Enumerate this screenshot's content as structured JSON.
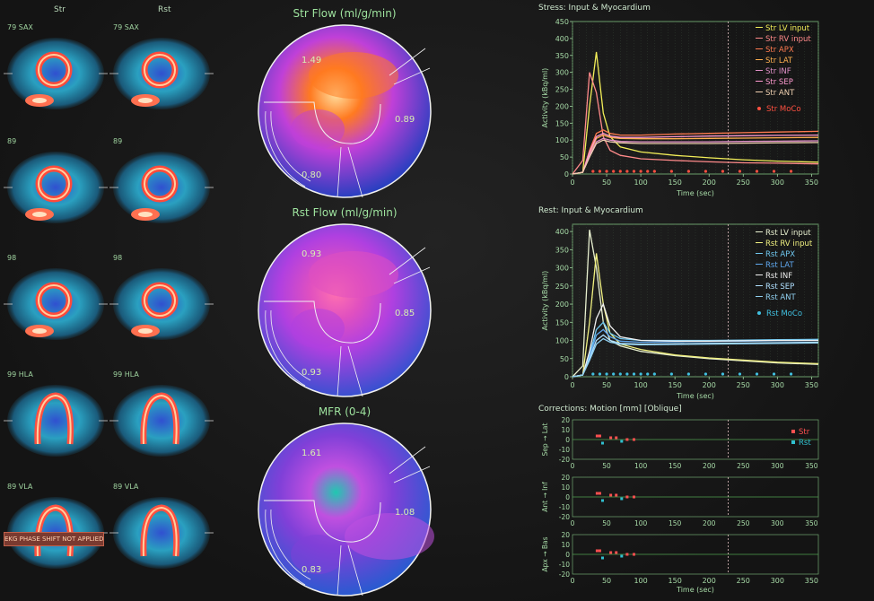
{
  "images": {
    "col_headers": [
      "Str",
      "Rst"
    ],
    "rows": [
      {
        "left": "79 SAX",
        "right": "79 SAX"
      },
      {
        "left": "89",
        "right": "89"
      },
      {
        "left": "98",
        "right": "98"
      },
      {
        "left": "99 HLA",
        "right": "99 HLA"
      },
      {
        "left": "89 VLA",
        "right": "89 VLA"
      }
    ],
    "banner": "EKG PHASE SHIFT NOT APPLIED"
  },
  "polar": [
    {
      "title": "Str Flow (ml/g/min)",
      "values": [
        "1.49",
        "0.89",
        "0.80"
      ],
      "colors": {
        "bg": "#2a3fc0",
        "mid": "#c040d8",
        "hot": "#ff7a20",
        "peak": "#ffe0a0"
      }
    },
    {
      "title": "Rst Flow (ml/g/min)",
      "values": [
        "0.93",
        "0.85",
        "0.93"
      ],
      "colors": {
        "bg": "#3a50d0",
        "mid": "#b040e0",
        "hot": "#e050c0",
        "peak": "#ff70b0"
      }
    },
    {
      "title": "MFR (0-4)",
      "values": [
        "1.61",
        "1.08",
        "0.83"
      ],
      "colors": {
        "bg": "#2a5ad0",
        "mid": "#8040d8",
        "hot": "#c050e0",
        "peak": "#20c8b0"
      }
    }
  ],
  "stress": {
    "title": "Stress: Input & Myocardium",
    "ylabel": "Activity (kBq/ml)",
    "xlabel": "Time (sec)",
    "yticks": [
      "0",
      "50",
      "100",
      "150",
      "200",
      "250",
      "300",
      "350",
      "400",
      "450"
    ],
    "xticks": [
      "0",
      "50",
      "100",
      "150",
      "200",
      "250",
      "300",
      "350"
    ],
    "legend": [
      {
        "label": "Str LV input",
        "color": "#f2ee58"
      },
      {
        "label": "Str RV input",
        "color": "#ff8a8a"
      },
      {
        "label": "Str APX",
        "color": "#ff7a50"
      },
      {
        "label": "Str LAT",
        "color": "#ffb050"
      },
      {
        "label": "Str INF",
        "color": "#e090c8"
      },
      {
        "label": "Str SEP",
        "color": "#ff9ad0"
      },
      {
        "label": "Str ANT",
        "color": "#f0d0b0"
      },
      {
        "label": "Str MoCo",
        "color": "#ff5040"
      }
    ]
  },
  "rest": {
    "title": "Rest: Input & Myocardium",
    "ylabel": "Activity (kBq/ml)",
    "xlabel": "Time (sec)",
    "yticks": [
      "0",
      "50",
      "100",
      "150",
      "200",
      "250",
      "300",
      "350",
      "400"
    ],
    "xticks": [
      "0",
      "50",
      "100",
      "150",
      "200",
      "250",
      "300",
      "350"
    ],
    "legend": [
      {
        "label": "Rst LV input",
        "color": "#e8f0d0"
      },
      {
        "label": "Rst RV input",
        "color": "#f0f080"
      },
      {
        "label": "Rst APX",
        "color": "#70c8f0"
      },
      {
        "label": "Rst LAT",
        "color": "#60a8f0"
      },
      {
        "label": "Rst INF",
        "color": "#f0f0f0"
      },
      {
        "label": "Rst SEP",
        "color": "#b0e0ff"
      },
      {
        "label": "Rst ANT",
        "color": "#90d0f0"
      },
      {
        "label": "Rst MoCo",
        "color": "#40c0e0"
      }
    ]
  },
  "corrections": {
    "title": "Corrections: Motion [mm] [Oblique]",
    "xlabel": "Time (sec)",
    "yticks": [
      "20",
      "10",
      "0",
      "-10",
      "-20"
    ],
    "xticks": [
      "0",
      "50",
      "100",
      "150",
      "200",
      "250",
      "300",
      "350"
    ],
    "panels": [
      {
        "label": "Sep → Lat"
      },
      {
        "label": "Ant → Inf"
      },
      {
        "label": "Apx → Bas"
      }
    ],
    "legend": [
      {
        "label": "Str",
        "color": "#ff5050"
      },
      {
        "label": "Rst",
        "color": "#30c0d0"
      }
    ]
  },
  "chart_data": [
    {
      "type": "line",
      "title": "Stress: Input & Myocardium",
      "xlabel": "Time (sec)",
      "ylabel": "Activity (kBq/ml)",
      "xlim": [
        0,
        360
      ],
      "ylim": [
        0,
        450
      ],
      "x": [
        0,
        15,
        25,
        35,
        45,
        55,
        70,
        100,
        150,
        200,
        250,
        300,
        360
      ],
      "series": [
        {
          "name": "Str LV input",
          "values": [
            0,
            5,
            200,
            360,
            180,
            110,
            80,
            65,
            55,
            48,
            42,
            38,
            35
          ]
        },
        {
          "name": "Str RV input",
          "values": [
            0,
            40,
            300,
            240,
            110,
            70,
            55,
            45,
            40,
            36,
            33,
            32,
            30
          ]
        },
        {
          "name": "Str APX",
          "values": [
            0,
            5,
            70,
            120,
            130,
            120,
            115,
            115,
            118,
            120,
            122,
            124,
            126
          ]
        },
        {
          "name": "Str LAT",
          "values": [
            0,
            5,
            60,
            105,
            115,
            108,
            105,
            104,
            104,
            105,
            106,
            107,
            108
          ]
        },
        {
          "name": "Str INF",
          "values": [
            0,
            5,
            55,
            95,
            105,
            100,
            96,
            95,
            95,
            95,
            96,
            97,
            98
          ]
        },
        {
          "name": "Str SEP",
          "values": [
            0,
            5,
            65,
            110,
            120,
            112,
            108,
            108,
            110,
            112,
            113,
            114,
            115
          ]
        },
        {
          "name": "Str ANT",
          "values": [
            0,
            5,
            50,
            90,
            100,
            95,
            92,
            90,
            90,
            90,
            91,
            92,
            93
          ]
        }
      ]
    },
    {
      "type": "line",
      "title": "Rest: Input & Myocardium",
      "xlabel": "Time (sec)",
      "ylabel": "Activity (kBq/ml)",
      "xlim": [
        0,
        360
      ],
      "ylim": [
        0,
        420
      ],
      "x": [
        0,
        15,
        25,
        35,
        45,
        55,
        70,
        100,
        150,
        200,
        250,
        300,
        360
      ],
      "series": [
        {
          "name": "Rst LV input",
          "values": [
            0,
            30,
            405,
            300,
            150,
            100,
            85,
            70,
            58,
            50,
            44,
            38,
            34
          ]
        },
        {
          "name": "Rst RV input",
          "values": [
            0,
            5,
            150,
            340,
            200,
            120,
            90,
            75,
            60,
            52,
            46,
            40,
            36
          ]
        },
        {
          "name": "Rst APX",
          "values": [
            0,
            5,
            60,
            130,
            150,
            120,
            105,
            100,
            100,
            100,
            101,
            102,
            103
          ]
        },
        {
          "name": "Rst LAT",
          "values": [
            0,
            5,
            55,
            115,
            130,
            110,
            98,
            95,
            96,
            97,
            98,
            99,
            100
          ]
        },
        {
          "name": "Rst INF",
          "values": [
            0,
            5,
            70,
            160,
            200,
            140,
            110,
            100,
            98,
            98,
            99,
            100,
            100
          ]
        },
        {
          "name": "Rst SEP",
          "values": [
            0,
            5,
            50,
            100,
            115,
            100,
            92,
            90,
            91,
            92,
            93,
            94,
            95
          ]
        },
        {
          "name": "Rst ANT",
          "values": [
            0,
            5,
            45,
            90,
            105,
            95,
            90,
            88,
            89,
            90,
            91,
            92,
            93
          ]
        }
      ]
    }
  ]
}
